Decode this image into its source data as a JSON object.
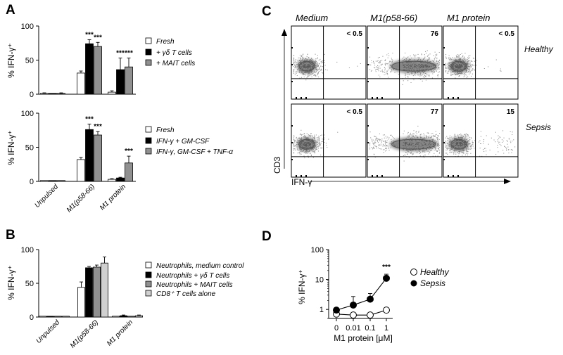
{
  "panels": {
    "A": {
      "label": "A",
      "top": {
        "ylabel": "% IFN-γ⁺",
        "yticks": [
          "0",
          "50",
          "100"
        ],
        "legend": [
          "Fresh",
          "+ γδ T cells",
          "+ MAIT cells"
        ]
      },
      "bottom": {
        "ylabel": "% IFN-γ⁺",
        "yticks": [
          "0",
          "50",
          "100"
        ],
        "legend": [
          "Fresh",
          "IFN-γ + GM-CSF",
          "IFN-γ, GM-CSF + TNF-α"
        ]
      },
      "categories": [
        "Unpulsed",
        "M1(p58-66)",
        "M1 protein"
      ]
    },
    "B": {
      "label": "B",
      "ylabel": "% IFN-γ⁺",
      "yticks": [
        "0",
        "50",
        "100"
      ],
      "legend": [
        "Neutrophils, medium control",
        "Neutrophils + γδ T cells",
        "Neutrophils + MAIT cells",
        "CD8⁺ T cells alone"
      ],
      "categories": [
        "Unpulsed",
        "M1(p58-66)",
        "M1 protein"
      ]
    },
    "C": {
      "label": "C",
      "columns": [
        "Medium",
        "M1(p58-66)",
        "M1 protein"
      ],
      "rows": [
        "Healthy",
        "Sepsis"
      ],
      "percentages": [
        [
          "< 0.5",
          "76",
          "< 0.5"
        ],
        [
          "< 0.5",
          "77",
          "15"
        ]
      ],
      "ylabel": "CD3",
      "xlabel": "IFN-γ"
    },
    "D": {
      "label": "D",
      "ylabel": "% IFN-γ⁺",
      "xlabel": "M1 protein [μM]",
      "xticks": [
        "0",
        "0.01",
        "0.1",
        "1"
      ],
      "yticks": [
        "1",
        "10",
        "100"
      ],
      "legend": [
        "Healthy",
        "Sepsis"
      ]
    }
  },
  "significance": "***",
  "colors": {
    "white": "#ffffff",
    "black": "#000000",
    "gray": "#909090",
    "lightgray": "#d0d0d0"
  },
  "chart_data": [
    {
      "type": "bar",
      "panel": "A-top",
      "categories": [
        "Unpulsed",
        "M1(p58-66)",
        "M1 protein"
      ],
      "ylabel": "% IFN-γ⁺",
      "ylim": [
        0,
        100
      ],
      "series": [
        {
          "name": "Fresh",
          "values": [
            1,
            31,
            3
          ],
          "errors": [
            1,
            3,
            2
          ]
        },
        {
          "name": "+ γδ T cells",
          "values": [
            0,
            74,
            36
          ],
          "errors": [
            0,
            6,
            17
          ]
        },
        {
          "name": "+ MAIT cells",
          "values": [
            1,
            70,
            40
          ],
          "errors": [
            1,
            6,
            13
          ]
        }
      ],
      "annotations": [
        {
          "category": "M1(p58-66)",
          "series": "+ γδ T cells",
          "text": "***"
        },
        {
          "category": "M1(p58-66)",
          "series": "+ MAIT cells",
          "text": "***"
        },
        {
          "category": "M1 protein",
          "series": "+ γδ T cells",
          "text": "***"
        },
        {
          "category": "M1 protein",
          "series": "+ MAIT cells",
          "text": "***"
        }
      ]
    },
    {
      "type": "bar",
      "panel": "A-bottom",
      "categories": [
        "Unpulsed",
        "M1(p58-66)",
        "M1 protein"
      ],
      "ylabel": "% IFN-γ⁺",
      "ylim": [
        0,
        100
      ],
      "series": [
        {
          "name": "Fresh",
          "values": [
            1,
            32,
            3
          ],
          "errors": [
            0,
            3,
            1
          ]
        },
        {
          "name": "IFN-γ + GM-CSF",
          "values": [
            1,
            76,
            5
          ],
          "errors": [
            0,
            8,
            1
          ]
        },
        {
          "name": "IFN-γ, GM-CSF + TNF-α",
          "values": [
            1,
            68,
            27
          ],
          "errors": [
            0,
            5,
            10
          ]
        }
      ],
      "annotations": [
        {
          "category": "M1(p58-66)",
          "series": "IFN-γ + GM-CSF",
          "text": "***"
        },
        {
          "category": "M1(p58-66)",
          "series": "IFN-γ, GM-CSF + TNF-α",
          "text": "***"
        },
        {
          "category": "M1 protein",
          "series": "IFN-γ, GM-CSF + TNF-α",
          "text": "***"
        }
      ]
    },
    {
      "type": "bar",
      "panel": "B",
      "categories": [
        "Unpulsed",
        "M1(p58-66)",
        "M1 protein"
      ],
      "ylabel": "% IFN-γ⁺",
      "ylim": [
        0,
        100
      ],
      "series": [
        {
          "name": "Neutrophils, medium control",
          "values": [
            1,
            44,
            1
          ],
          "errors": [
            0,
            8,
            0
          ]
        },
        {
          "name": "Neutrophils + γδ T cells",
          "values": [
            1,
            73,
            2
          ],
          "errors": [
            0,
            2,
            1
          ]
        },
        {
          "name": "Neutrophils + MAIT cells",
          "values": [
            1,
            74,
            1
          ],
          "errors": [
            0,
            3,
            0
          ]
        },
        {
          "name": "CD8⁺ T cells alone",
          "values": [
            1,
            80,
            2
          ],
          "errors": [
            0,
            9,
            1
          ]
        }
      ]
    },
    {
      "type": "line",
      "panel": "D",
      "x": [
        "0",
        "0.01",
        "0.1",
        "1"
      ],
      "xlabel": "M1 protein [μM]",
      "ylabel": "% IFN-γ⁺",
      "yscale": "log",
      "ylim": [
        0.5,
        100
      ],
      "series": [
        {
          "name": "Healthy",
          "values": [
            0.7,
            0.65,
            0.65,
            0.95
          ],
          "errors": [
            0.1,
            0.1,
            0.1,
            0.2
          ]
        },
        {
          "name": "Sepsis",
          "values": [
            0.95,
            1.4,
            2.2,
            11
          ],
          "errors": [
            0.2,
            1.3,
            1.2,
            4
          ]
        }
      ],
      "annotations": [
        {
          "x": "1",
          "text": "***"
        }
      ]
    }
  ]
}
